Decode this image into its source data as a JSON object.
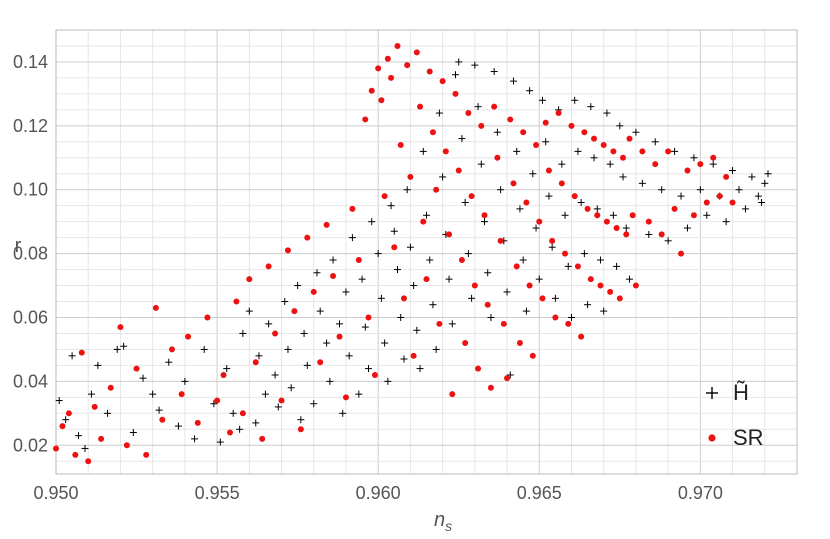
{
  "chart_data": {
    "type": "scatter",
    "title": "",
    "xlabel": "n_s",
    "ylabel": "r",
    "xlim": [
      0.95,
      0.973
    ],
    "ylim": [
      0.011,
      0.15
    ],
    "xticks": [
      "0.950",
      "0.955",
      "0.960",
      "0.965",
      "0.970"
    ],
    "yticks": [
      "0.02",
      "0.04",
      "0.06",
      "0.08",
      "0.10",
      "0.12",
      "0.14"
    ],
    "grid": true,
    "legend_position": "right",
    "series": [
      {
        "name": "H̃",
        "marker": "plus",
        "color": "#000000",
        "points": [
          [
            0.9501,
            0.034
          ],
          [
            0.9503,
            0.028
          ],
          [
            0.9505,
            0.048
          ],
          [
            0.9507,
            0.023
          ],
          [
            0.9509,
            0.019
          ],
          [
            0.9511,
            0.036
          ],
          [
            0.9513,
            0.045
          ],
          [
            0.9516,
            0.03
          ],
          [
            0.9519,
            0.05
          ],
          [
            0.9521,
            0.051
          ],
          [
            0.9524,
            0.024
          ],
          [
            0.9527,
            0.041
          ],
          [
            0.953,
            0.036
          ],
          [
            0.9532,
            0.031
          ],
          [
            0.9535,
            0.046
          ],
          [
            0.9538,
            0.026
          ],
          [
            0.954,
            0.04
          ],
          [
            0.9543,
            0.022
          ],
          [
            0.9546,
            0.05
          ],
          [
            0.9549,
            0.033
          ],
          [
            0.9551,
            0.021
          ],
          [
            0.9553,
            0.044
          ],
          [
            0.9555,
            0.03
          ],
          [
            0.9557,
            0.025
          ],
          [
            0.9558,
            0.055
          ],
          [
            0.956,
            0.062
          ],
          [
            0.9562,
            0.027
          ],
          [
            0.9563,
            0.048
          ],
          [
            0.9565,
            0.036
          ],
          [
            0.9566,
            0.058
          ],
          [
            0.9568,
            0.042
          ],
          [
            0.9569,
            0.032
          ],
          [
            0.9571,
            0.065
          ],
          [
            0.9572,
            0.05
          ],
          [
            0.9573,
            0.038
          ],
          [
            0.9575,
            0.07
          ],
          [
            0.9576,
            0.028
          ],
          [
            0.9577,
            0.055
          ],
          [
            0.9578,
            0.045
          ],
          [
            0.958,
            0.033
          ],
          [
            0.9581,
            0.074
          ],
          [
            0.9582,
            0.062
          ],
          [
            0.9584,
            0.052
          ],
          [
            0.9585,
            0.04
          ],
          [
            0.9586,
            0.078
          ],
          [
            0.9588,
            0.058
          ],
          [
            0.9589,
            0.03
          ],
          [
            0.959,
            0.068
          ],
          [
            0.9591,
            0.048
          ],
          [
            0.9592,
            0.085
          ],
          [
            0.9594,
            0.036
          ],
          [
            0.9595,
            0.072
          ],
          [
            0.9596,
            0.057
          ],
          [
            0.9597,
            0.044
          ],
          [
            0.9598,
            0.09
          ],
          [
            0.96,
            0.08
          ],
          [
            0.9601,
            0.066
          ],
          [
            0.9602,
            0.052
          ],
          [
            0.9603,
            0.04
          ],
          [
            0.9604,
            0.095
          ],
          [
            0.9605,
            0.087
          ],
          [
            0.9606,
            0.075
          ],
          [
            0.9607,
            0.06
          ],
          [
            0.9608,
            0.047
          ],
          [
            0.9609,
            0.1
          ],
          [
            0.961,
            0.082
          ],
          [
            0.9611,
            0.07
          ],
          [
            0.9612,
            0.056
          ],
          [
            0.9613,
            0.044
          ],
          [
            0.9614,
            0.112
          ],
          [
            0.9615,
            0.092
          ],
          [
            0.9616,
            0.078
          ],
          [
            0.9617,
            0.064
          ],
          [
            0.9618,
            0.05
          ],
          [
            0.9619,
            0.124
          ],
          [
            0.962,
            0.104
          ],
          [
            0.9621,
            0.086
          ],
          [
            0.9622,
            0.072
          ],
          [
            0.9623,
            0.058
          ],
          [
            0.9624,
            0.136
          ],
          [
            0.9625,
            0.14
          ],
          [
            0.9626,
            0.116
          ],
          [
            0.9627,
            0.096
          ],
          [
            0.9628,
            0.08
          ],
          [
            0.9629,
            0.066
          ],
          [
            0.963,
            0.139
          ],
          [
            0.9631,
            0.126
          ],
          [
            0.9632,
            0.108
          ],
          [
            0.9633,
            0.09
          ],
          [
            0.9634,
            0.074
          ],
          [
            0.9635,
            0.06
          ],
          [
            0.9636,
            0.137
          ],
          [
            0.9637,
            0.118
          ],
          [
            0.9638,
            0.1
          ],
          [
            0.9639,
            0.084
          ],
          [
            0.964,
            0.068
          ],
          [
            0.9641,
            0.042
          ],
          [
            0.9642,
            0.134
          ],
          [
            0.9643,
            0.112
          ],
          [
            0.9644,
            0.094
          ],
          [
            0.9645,
            0.078
          ],
          [
            0.9646,
            0.062
          ],
          [
            0.9647,
            0.131
          ],
          [
            0.9648,
            0.105
          ],
          [
            0.9649,
            0.088
          ],
          [
            0.965,
            0.072
          ],
          [
            0.9651,
            0.128
          ],
          [
            0.9652,
            0.115
          ],
          [
            0.9653,
            0.098
          ],
          [
            0.9654,
            0.082
          ],
          [
            0.9655,
            0.066
          ],
          [
            0.9656,
            0.125
          ],
          [
            0.9657,
            0.108
          ],
          [
            0.9658,
            0.092
          ],
          [
            0.9659,
            0.076
          ],
          [
            0.966,
            0.06
          ],
          [
            0.9661,
            0.128
          ],
          [
            0.9662,
            0.112
          ],
          [
            0.9663,
            0.096
          ],
          [
            0.9664,
            0.08
          ],
          [
            0.9665,
            0.064
          ],
          [
            0.9666,
            0.126
          ],
          [
            0.9667,
            0.11
          ],
          [
            0.9668,
            0.094
          ],
          [
            0.9669,
            0.078
          ],
          [
            0.967,
            0.062
          ],
          [
            0.9671,
            0.124
          ],
          [
            0.9672,
            0.108
          ],
          [
            0.9673,
            0.092
          ],
          [
            0.9674,
            0.076
          ],
          [
            0.9675,
            0.12
          ],
          [
            0.9676,
            0.104
          ],
          [
            0.9677,
            0.088
          ],
          [
            0.9678,
            0.072
          ],
          [
            0.968,
            0.118
          ],
          [
            0.9682,
            0.102
          ],
          [
            0.9684,
            0.086
          ],
          [
            0.9686,
            0.115
          ],
          [
            0.9688,
            0.1
          ],
          [
            0.969,
            0.084
          ],
          [
            0.9692,
            0.112
          ],
          [
            0.9694,
            0.098
          ],
          [
            0.9696,
            0.088
          ],
          [
            0.9698,
            0.11
          ],
          [
            0.97,
            0.1
          ],
          [
            0.9702,
            0.092
          ],
          [
            0.9704,
            0.108
          ],
          [
            0.9706,
            0.098
          ],
          [
            0.9708,
            0.09
          ],
          [
            0.971,
            0.106
          ],
          [
            0.9712,
            0.1
          ],
          [
            0.9714,
            0.094
          ],
          [
            0.9716,
            0.104
          ],
          [
            0.9718,
            0.098
          ],
          [
            0.972,
            0.102
          ],
          [
            0.9721,
            0.105
          ],
          [
            0.9719,
            0.096
          ]
        ]
      },
      {
        "name": "SR",
        "marker": "dot",
        "color": "#ee1111",
        "points": [
          [
            0.95,
            0.019
          ],
          [
            0.9502,
            0.026
          ],
          [
            0.9504,
            0.03
          ],
          [
            0.9506,
            0.017
          ],
          [
            0.9508,
            0.049
          ],
          [
            0.951,
            0.015
          ],
          [
            0.9512,
            0.032
          ],
          [
            0.9514,
            0.022
          ],
          [
            0.9517,
            0.038
          ],
          [
            0.952,
            0.057
          ],
          [
            0.9522,
            0.02
          ],
          [
            0.9525,
            0.044
          ],
          [
            0.9528,
            0.017
          ],
          [
            0.9531,
            0.063
          ],
          [
            0.9533,
            0.028
          ],
          [
            0.9536,
            0.05
          ],
          [
            0.9539,
            0.036
          ],
          [
            0.9541,
            0.054
          ],
          [
            0.9544,
            0.027
          ],
          [
            0.9547,
            0.06
          ],
          [
            0.955,
            0.034
          ],
          [
            0.9552,
            0.042
          ],
          [
            0.9554,
            0.024
          ],
          [
            0.9556,
            0.065
          ],
          [
            0.9558,
            0.03
          ],
          [
            0.956,
            0.072
          ],
          [
            0.9562,
            0.046
          ],
          [
            0.9564,
            0.022
          ],
          [
            0.9566,
            0.076
          ],
          [
            0.9568,
            0.055
          ],
          [
            0.957,
            0.034
          ],
          [
            0.9572,
            0.081
          ],
          [
            0.9574,
            0.062
          ],
          [
            0.9576,
            0.025
          ],
          [
            0.9578,
            0.085
          ],
          [
            0.958,
            0.068
          ],
          [
            0.9582,
            0.046
          ],
          [
            0.9584,
            0.089
          ],
          [
            0.9586,
            0.073
          ],
          [
            0.9588,
            0.054
          ],
          [
            0.959,
            0.035
          ],
          [
            0.9592,
            0.094
          ],
          [
            0.9594,
            0.078
          ],
          [
            0.9596,
            0.122
          ],
          [
            0.9597,
            0.06
          ],
          [
            0.9598,
            0.131
          ],
          [
            0.9599,
            0.042
          ],
          [
            0.96,
            0.138
          ],
          [
            0.9601,
            0.128
          ],
          [
            0.9602,
            0.098
          ],
          [
            0.9603,
            0.141
          ],
          [
            0.9604,
            0.135
          ],
          [
            0.9605,
            0.082
          ],
          [
            0.9606,
            0.145
          ],
          [
            0.9607,
            0.114
          ],
          [
            0.9608,
            0.066
          ],
          [
            0.9609,
            0.139
          ],
          [
            0.961,
            0.104
          ],
          [
            0.9611,
            0.048
          ],
          [
            0.9612,
            0.143
          ],
          [
            0.9613,
            0.126
          ],
          [
            0.9614,
            0.09
          ],
          [
            0.9615,
            0.072
          ],
          [
            0.9616,
            0.137
          ],
          [
            0.9617,
            0.118
          ],
          [
            0.9618,
            0.1
          ],
          [
            0.9619,
            0.058
          ],
          [
            0.962,
            0.134
          ],
          [
            0.9621,
            0.112
          ],
          [
            0.9622,
            0.086
          ],
          [
            0.9623,
            0.036
          ],
          [
            0.9624,
            0.13
          ],
          [
            0.9625,
            0.106
          ],
          [
            0.9626,
            0.078
          ],
          [
            0.9627,
            0.052
          ],
          [
            0.9628,
            0.124
          ],
          [
            0.9629,
            0.098
          ],
          [
            0.963,
            0.07
          ],
          [
            0.9631,
            0.044
          ],
          [
            0.9632,
            0.12
          ],
          [
            0.9633,
            0.092
          ],
          [
            0.9634,
            0.064
          ],
          [
            0.9635,
            0.038
          ],
          [
            0.9636,
            0.126
          ],
          [
            0.9637,
            0.11
          ],
          [
            0.9638,
            0.084
          ],
          [
            0.9639,
            0.058
          ],
          [
            0.964,
            0.041
          ],
          [
            0.9641,
            0.122
          ],
          [
            0.9642,
            0.102
          ],
          [
            0.9643,
            0.076
          ],
          [
            0.9644,
            0.052
          ],
          [
            0.9645,
            0.118
          ],
          [
            0.9646,
            0.096
          ],
          [
            0.9647,
            0.07
          ],
          [
            0.9648,
            0.048
          ],
          [
            0.9649,
            0.114
          ],
          [
            0.965,
            0.09
          ],
          [
            0.9651,
            0.066
          ],
          [
            0.9652,
            0.121
          ],
          [
            0.9653,
            0.106
          ],
          [
            0.9654,
            0.084
          ],
          [
            0.9655,
            0.06
          ],
          [
            0.9656,
            0.124
          ],
          [
            0.9657,
            0.102
          ],
          [
            0.9658,
            0.08
          ],
          [
            0.9659,
            0.058
          ],
          [
            0.966,
            0.12
          ],
          [
            0.9661,
            0.098
          ],
          [
            0.9662,
            0.076
          ],
          [
            0.9663,
            0.054
          ],
          [
            0.9664,
            0.118
          ],
          [
            0.9665,
            0.094
          ],
          [
            0.9666,
            0.072
          ],
          [
            0.9667,
            0.116
          ],
          [
            0.9668,
            0.092
          ],
          [
            0.9669,
            0.07
          ],
          [
            0.967,
            0.114
          ],
          [
            0.9671,
            0.09
          ],
          [
            0.9672,
            0.068
          ],
          [
            0.9673,
            0.112
          ],
          [
            0.9674,
            0.088
          ],
          [
            0.9675,
            0.066
          ],
          [
            0.9676,
            0.11
          ],
          [
            0.9677,
            0.086
          ],
          [
            0.9678,
            0.116
          ],
          [
            0.9679,
            0.092
          ],
          [
            0.968,
            0.07
          ],
          [
            0.9682,
            0.112
          ],
          [
            0.9684,
            0.09
          ],
          [
            0.9686,
            0.108
          ],
          [
            0.9688,
            0.086
          ],
          [
            0.969,
            0.112
          ],
          [
            0.9692,
            0.094
          ],
          [
            0.9694,
            0.08
          ],
          [
            0.9696,
            0.106
          ],
          [
            0.9698,
            0.092
          ],
          [
            0.97,
            0.108
          ],
          [
            0.9702,
            0.096
          ],
          [
            0.9704,
            0.11
          ],
          [
            0.9706,
            0.098
          ],
          [
            0.9708,
            0.104
          ],
          [
            0.971,
            0.096
          ]
        ]
      }
    ]
  }
}
